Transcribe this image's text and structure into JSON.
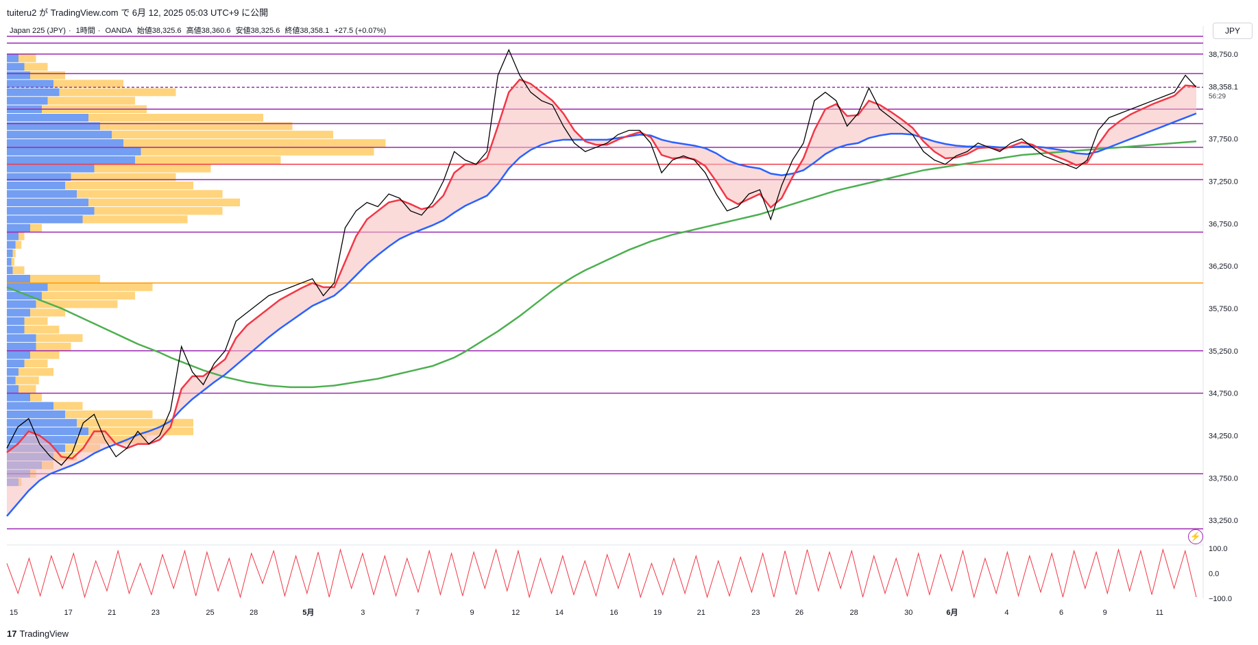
{
  "header": {
    "publish_text": "tuiteru2 が TradingView.com で 6月 12, 2025 05:03 UTC+9 に公開",
    "symbol": "Japan 225 (JPY)",
    "timeframe": "1時間",
    "broker": "OANDA",
    "open": "始値38,325.6",
    "high": "高値38,360.6",
    "low": "安値38,325.6",
    "close": "終値38,358.1",
    "change": "+27.5 (+0.07%)",
    "currency": "JPY"
  },
  "footer": {
    "logo": "17",
    "brand": "TradingView"
  },
  "icons": {
    "alert": "lightning-icon"
  },
  "colors": {
    "candle": "#000000",
    "ema_fast": "#f23645",
    "ema_mid": "#2962ff",
    "ma_slow": "#4caf50",
    "level_purple": "#9c27b0",
    "level_red": "#f23645",
    "level_orange": "#ff9800",
    "profile_blue": "#5b8def",
    "profile_yellow": "#ffcc66",
    "fill_red": "#f8bbbb",
    "fill_blue": "#c5cff5",
    "oscillator": "#f23645"
  },
  "chart_data": {
    "type": "line",
    "title": "Japan 225 (JPY) · 1時間 · OANDA",
    "ylim": [
      33000,
      39000
    ],
    "y_ticks": [
      "38,750.0",
      "37,750.0",
      "37,250.0",
      "36,750.0",
      "36,250.0",
      "35,750.0",
      "35,250.0",
      "34,750.0",
      "34,250.0",
      "33,750.0",
      "33,250.0"
    ],
    "y_tick_values": [
      38750,
      37750,
      37250,
      36750,
      36250,
      35750,
      35250,
      34750,
      34250,
      33750,
      33250
    ],
    "last_price_label": "38,358.1",
    "countdown": "56:29",
    "x_tick_labels": [
      "15",
      "17",
      "21",
      "23",
      "25",
      "28",
      "5月",
      "3",
      "7",
      "9",
      "12",
      "14",
      "16",
      "19",
      "21",
      "23",
      "26",
      "28",
      "30",
      "6月",
      "4",
      "6",
      "9",
      "11"
    ],
    "x_tick_index": [
      0,
      5,
      9,
      13,
      18,
      22,
      27,
      32,
      37,
      42,
      46,
      50,
      55,
      59,
      63,
      68,
      72,
      77,
      82,
      86,
      91,
      96,
      100,
      105
    ],
    "x_total": 110,
    "price_series": [
      {
        "name": "price",
        "values": [
          34100,
          34350,
          34450,
          34150,
          34000,
          33900,
          34050,
          34400,
          34500,
          34200,
          34000,
          34100,
          34300,
          34150,
          34250,
          34550,
          35300,
          35000,
          34850,
          35100,
          35250,
          35600,
          35700,
          35800,
          35900,
          35950,
          36000,
          36050,
          36100,
          35900,
          36050,
          36700,
          36900,
          37000,
          36950,
          37100,
          37050,
          36900,
          36850,
          37000,
          37250,
          37600,
          37500,
          37450,
          37600,
          38500,
          38800,
          38500,
          38300,
          38200,
          38150,
          37900,
          37700,
          37600,
          37650,
          37700,
          37800,
          37850,
          37850,
          37700,
          37350,
          37500,
          37550,
          37500,
          37350,
          37100,
          36900,
          36950,
          37100,
          37150,
          36800,
          37200,
          37500,
          37700,
          38200,
          38300,
          38200,
          37900,
          38050,
          38350,
          38100,
          38000,
          37900,
          37800,
          37600,
          37500,
          37450,
          37550,
          37600,
          37700,
          37650,
          37600,
          37700,
          37750,
          37650,
          37550,
          37500,
          37450,
          37400,
          37500,
          37850,
          38000,
          38050,
          38100,
          38150,
          38200,
          38250,
          38300,
          38500,
          38358
        ]
      },
      {
        "name": "ema_fast",
        "values": [
          34050,
          34150,
          34300,
          34250,
          34150,
          34000,
          33980,
          34100,
          34300,
          34300,
          34150,
          34100,
          34150,
          34150,
          34200,
          34350,
          34800,
          34950,
          34950,
          35050,
          35150,
          35400,
          35550,
          35650,
          35750,
          35850,
          35920,
          35990,
          36050,
          36000,
          36000,
          36300,
          36600,
          36800,
          36900,
          37000,
          37030,
          36980,
          36920,
          36950,
          37080,
          37350,
          37450,
          37450,
          37520,
          37900,
          38300,
          38450,
          38400,
          38300,
          38200,
          38050,
          37850,
          37720,
          37680,
          37680,
          37740,
          37790,
          37830,
          37770,
          37560,
          37520,
          37530,
          37510,
          37430,
          37250,
          37050,
          36980,
          37040,
          37100,
          36940,
          37050,
          37300,
          37520,
          37850,
          38100,
          38160,
          38020,
          38030,
          38200,
          38150,
          38070,
          37980,
          37880,
          37720,
          37600,
          37520,
          37530,
          37570,
          37640,
          37650,
          37620,
          37660,
          37710,
          37680,
          37610,
          37550,
          37500,
          37440,
          37470,
          37680,
          37860,
          37960,
          38040,
          38100,
          38160,
          38210,
          38260,
          38380,
          38370
        ]
      },
      {
        "name": "ema_mid",
        "values": [
          33300,
          33450,
          33600,
          33720,
          33800,
          33850,
          33900,
          33960,
          34040,
          34100,
          34150,
          34200,
          34260,
          34300,
          34350,
          34420,
          34560,
          34680,
          34780,
          34880,
          34970,
          35080,
          35190,
          35300,
          35410,
          35510,
          35600,
          35690,
          35780,
          35840,
          35900,
          36010,
          36140,
          36270,
          36380,
          36480,
          36570,
          36630,
          36680,
          36730,
          36790,
          36880,
          36960,
          37020,
          37080,
          37220,
          37400,
          37530,
          37620,
          37680,
          37720,
          37740,
          37740,
          37740,
          37740,
          37740,
          37760,
          37780,
          37800,
          37790,
          37740,
          37710,
          37690,
          37670,
          37640,
          37580,
          37500,
          37450,
          37420,
          37400,
          37340,
          37320,
          37340,
          37380,
          37470,
          37570,
          37640,
          37680,
          37700,
          37760,
          37790,
          37810,
          37810,
          37800,
          37760,
          37720,
          37690,
          37670,
          37660,
          37660,
          37660,
          37650,
          37650,
          37660,
          37660,
          37650,
          37630,
          37610,
          37580,
          37570,
          37600,
          37650,
          37700,
          37750,
          37800,
          37850,
          37900,
          37950,
          38000,
          38050
        ]
      },
      {
        "name": "ma_slow",
        "values": [
          36000,
          35950,
          35900,
          35850,
          35800,
          35750,
          35690,
          35630,
          35570,
          35510,
          35450,
          35390,
          35330,
          35280,
          35230,
          35170,
          35120,
          35070,
          35020,
          34980,
          34940,
          34910,
          34880,
          34860,
          34840,
          34830,
          34820,
          34820,
          34820,
          34830,
          34840,
          34860,
          34880,
          34900,
          34920,
          34950,
          34980,
          35010,
          35040,
          35070,
          35120,
          35170,
          35240,
          35320,
          35400,
          35480,
          35570,
          35660,
          35760,
          35860,
          35960,
          36050,
          36130,
          36200,
          36260,
          36320,
          36380,
          36440,
          36490,
          36540,
          36580,
          36620,
          36650,
          36680,
          36710,
          36740,
          36770,
          36800,
          36830,
          36860,
          36900,
          36940,
          36980,
          37020,
          37060,
          37100,
          37140,
          37170,
          37200,
          37230,
          37260,
          37290,
          37320,
          37350,
          37380,
          37400,
          37420,
          37440,
          37460,
          37480,
          37500,
          37520,
          37540,
          37560,
          37570,
          37580,
          37590,
          37600,
          37610,
          37620,
          37630,
          37640,
          37650,
          37660,
          37670,
          37680,
          37690,
          37700,
          37710,
          37720
        ]
      }
    ],
    "levels": [
      {
        "price": 38750,
        "color": "purple"
      },
      {
        "price": 38880,
        "color": "purple"
      },
      {
        "price": 38960,
        "color": "purple"
      },
      {
        "price": 38520,
        "color": "purple"
      },
      {
        "price": 38358.1,
        "color": "purple",
        "dashed": true
      },
      {
        "price": 38100,
        "color": "purple"
      },
      {
        "price": 37930,
        "color": "purple"
      },
      {
        "price": 37650,
        "color": "purple"
      },
      {
        "price": 37450,
        "color": "red"
      },
      {
        "price": 37270,
        "color": "purple"
      },
      {
        "price": 36650,
        "color": "purple"
      },
      {
        "price": 36050,
        "color": "orange"
      },
      {
        "price": 35250,
        "color": "purple"
      },
      {
        "price": 34750,
        "color": "purple"
      },
      {
        "price": 33800,
        "color": "purple"
      },
      {
        "price": 33150,
        "color": "purple"
      }
    ],
    "volume_profile": {
      "price_bins": [
        38700,
        38600,
        38500,
        38400,
        38300,
        38200,
        38100,
        38000,
        37900,
        37800,
        37700,
        37600,
        37500,
        37400,
        37300,
        37200,
        37100,
        37000,
        36900,
        36800,
        36700,
        36600,
        36500,
        36400,
        36300,
        36200,
        36100,
        36000,
        35900,
        35800,
        35700,
        35600,
        35500,
        35400,
        35300,
        35200,
        35100,
        35000,
        34900,
        34800,
        34700,
        34600,
        34500,
        34400,
        34300,
        34200,
        34100,
        34000,
        33900,
        33800,
        33700
      ],
      "blue": [
        20,
        30,
        40,
        80,
        90,
        70,
        60,
        140,
        160,
        180,
        200,
        230,
        220,
        150,
        110,
        100,
        120,
        140,
        150,
        130,
        40,
        20,
        15,
        10,
        8,
        10,
        40,
        70,
        60,
        50,
        40,
        30,
        30,
        50,
        50,
        40,
        30,
        20,
        15,
        20,
        40,
        80,
        100,
        120,
        140,
        120,
        100,
        80,
        60,
        40,
        20
      ],
      "yellow": [
        30,
        40,
        60,
        120,
        200,
        150,
        180,
        300,
        330,
        380,
        450,
        400,
        250,
        200,
        180,
        220,
        250,
        260,
        220,
        180,
        20,
        10,
        10,
        5,
        5,
        20,
        120,
        180,
        160,
        140,
        60,
        40,
        60,
        80,
        60,
        50,
        40,
        60,
        40,
        30,
        20,
        50,
        150,
        200,
        180,
        120,
        60,
        40,
        20,
        10,
        5
      ]
    },
    "oscillator": {
      "y_ticks": [
        "100.0",
        "0.0",
        "−100.0"
      ],
      "range": [
        -100,
        100
      ],
      "values": [
        40,
        -80,
        60,
        -90,
        70,
        -60,
        80,
        -95,
        50,
        -70,
        90,
        -80,
        40,
        -85,
        75,
        -60,
        90,
        -90,
        85,
        -70,
        60,
        -95,
        80,
        -40,
        90,
        -90,
        70,
        -80,
        85,
        -95,
        95,
        -60,
        80,
        -85,
        70,
        -90,
        60,
        -75,
        90,
        -85,
        80,
        -90,
        85,
        -60,
        95,
        -70,
        90,
        -95,
        60,
        -80,
        70,
        -85,
        50,
        -90,
        75,
        -60,
        80,
        -95,
        40,
        -85,
        60,
        -80,
        70,
        -95,
        50,
        -90,
        65,
        -75,
        80,
        -95,
        90,
        -85,
        95,
        -70,
        85,
        -60,
        90,
        -95,
        70,
        -80,
        60,
        -90,
        80,
        -85,
        75,
        -70,
        90,
        -95,
        60,
        -80,
        85,
        -90,
        70,
        -75,
        80,
        -95,
        90,
        -60,
        85,
        -80,
        95,
        -70,
        90,
        -85,
        95,
        -60,
        90,
        -95
      ]
    }
  }
}
